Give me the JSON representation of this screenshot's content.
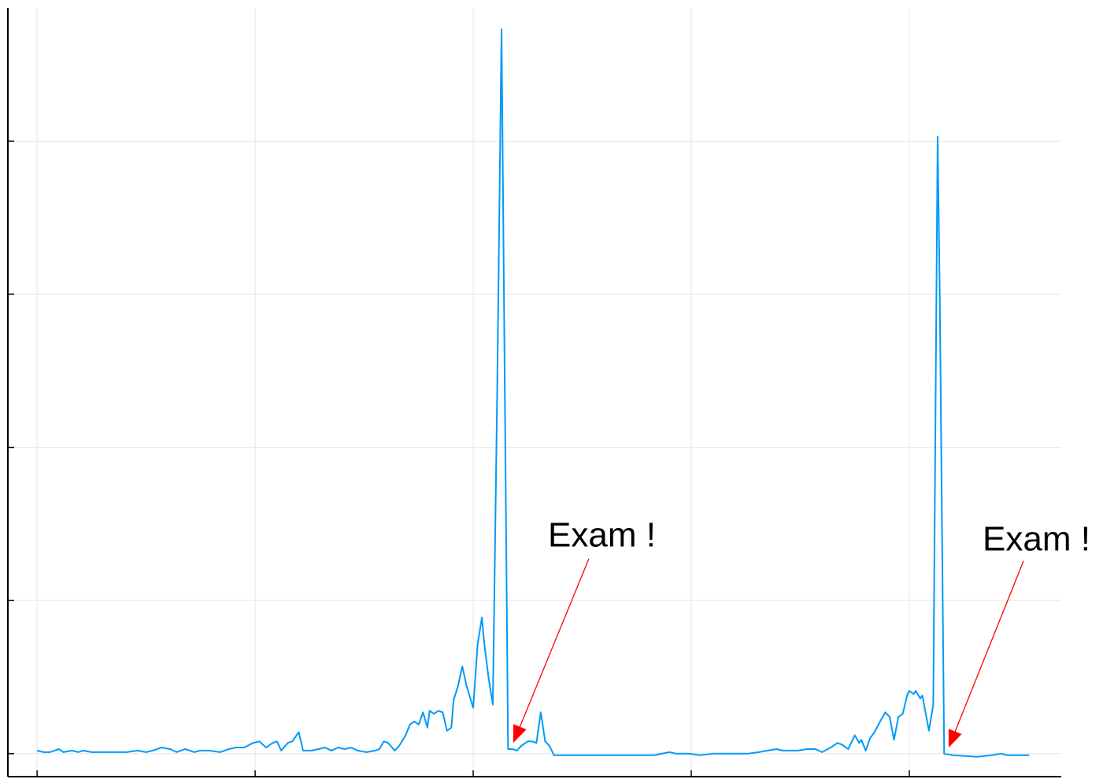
{
  "chart_data": {
    "type": "line",
    "xlim": [
      -13.4,
      469.7
    ],
    "ylim": [
      -0.15,
      4.87
    ],
    "xticks": [
      0,
      100,
      200,
      300,
      400
    ],
    "yticks": [
      0,
      1,
      2,
      3,
      4
    ],
    "grid": true,
    "series": [
      {
        "color": "#009af9",
        "x": [
          0,
          3,
          6,
          10,
          12,
          16,
          19,
          21,
          25,
          28,
          34,
          41,
          46,
          50,
          53,
          57,
          61,
          64,
          68,
          72,
          75,
          79,
          84,
          88,
          91,
          95,
          99,
          102,
          105,
          108,
          110,
          112,
          115,
          117,
          120,
          122,
          126,
          129,
          132,
          135,
          138,
          141,
          144,
          147,
          151,
          155,
          157,
          159,
          161,
          164,
          166,
          169,
          171,
          173,
          175,
          177,
          179,
          180,
          182,
          184,
          186,
          188,
          190,
          191,
          193,
          195,
          197,
          200,
          202,
          204,
          205,
          207,
          209,
          211,
          213,
          216,
          218,
          220,
          222,
          225,
          227,
          229,
          231,
          233,
          235,
          237,
          241,
          247,
          257,
          272,
          283,
          290,
          293,
          299,
          304,
          310,
          315,
          321,
          326,
          331,
          335,
          339,
          342,
          346,
          349,
          353,
          357,
          360,
          364,
          367,
          369,
          372,
          375,
          377,
          378,
          380,
          382,
          384,
          387,
          389,
          391,
          393,
          395,
          397,
          399,
          400,
          402,
          403,
          405,
          406,
          409,
          411,
          413,
          414,
          416,
          420,
          431,
          438,
          442,
          445,
          455
        ],
        "values": [
          0.02,
          0.01,
          0.01,
          0.03,
          0.01,
          0.02,
          0.01,
          0.02,
          0.01,
          0.01,
          0.01,
          0.01,
          0.02,
          0.01,
          0.02,
          0.04,
          0.03,
          0.01,
          0.03,
          0.01,
          0.02,
          0.02,
          0.01,
          0.03,
          0.04,
          0.04,
          0.07,
          0.08,
          0.04,
          0.07,
          0.08,
          0.02,
          0.07,
          0.08,
          0.14,
          0.02,
          0.02,
          0.03,
          0.04,
          0.02,
          0.04,
          0.03,
          0.04,
          0.02,
          0.01,
          0.02,
          0.03,
          0.08,
          0.07,
          0.02,
          0.05,
          0.12,
          0.19,
          0.21,
          0.19,
          0.27,
          0.17,
          0.28,
          0.26,
          0.28,
          0.27,
          0.15,
          0.17,
          0.35,
          0.44,
          0.57,
          0.44,
          0.3,
          0.71,
          0.89,
          0.73,
          0.5,
          0.32,
          2.35,
          4.73,
          0.03,
          0.03,
          0.02,
          0.05,
          0.08,
          0.08,
          0.07,
          0.27,
          0.08,
          0.05,
          -0.01,
          -0.01,
          -0.01,
          -0.01,
          -0.01,
          -0.01,
          0.01,
          0,
          0,
          -0.01,
          0,
          0,
          0,
          0,
          0.01,
          0.02,
          0.03,
          0.02,
          0.02,
          0.02,
          0.03,
          0.03,
          0.01,
          0.04,
          0.07,
          0.06,
          0.03,
          0.12,
          0.07,
          0.09,
          0.02,
          0.1,
          0.14,
          0.22,
          0.27,
          0.24,
          0.09,
          0.24,
          0.26,
          0.38,
          0.41,
          0.39,
          0.41,
          0.36,
          0.38,
          0.15,
          0.32,
          4.03,
          2.97,
          0,
          -0.01,
          -0.02,
          -0.01,
          0,
          -0.01,
          -0.01
        ]
      }
    ],
    "annotations": [
      {
        "text": "Exam !"
      },
      {
        "text": "Exam !"
      }
    ],
    "annotation_color": "#ff0000"
  }
}
